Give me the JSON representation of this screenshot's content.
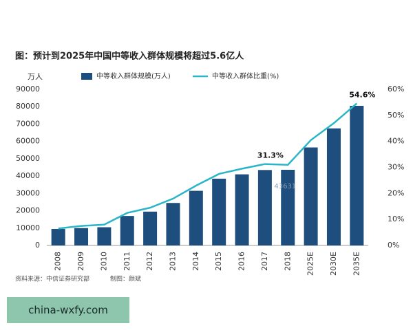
{
  "chart_data": {
    "type": "bar-line",
    "title": "图：预计到2025年中国中等收入群体规模将超过5.6亿人",
    "y_unit": "万人",
    "categories": [
      "2008",
      "2009",
      "2010",
      "2011",
      "2012",
      "2013",
      "2014",
      "2015",
      "2016",
      "2017",
      "2018",
      "2025E",
      "2030E",
      "2035E"
    ],
    "series": [
      {
        "name": "中等收入群体规模(万人)",
        "color": "#1d4e7e",
        "type": "bar",
        "values": [
          9500,
          10000,
          10500,
          17000,
          19500,
          24500,
          31500,
          38500,
          41000,
          43500,
          43631,
          56500,
          67500,
          80500
        ],
        "value_labels": [
          null,
          null,
          null,
          null,
          null,
          null,
          null,
          null,
          null,
          null,
          "43631",
          null,
          null,
          null
        ]
      },
      {
        "name": "中等收入群体比重(%)",
        "color": "#2ab5c8",
        "type": "line",
        "axis": "y2",
        "values": [
          6.5,
          7.5,
          8,
          12.5,
          14.5,
          18,
          23,
          27.5,
          29.5,
          31.3,
          31,
          40.5,
          47,
          54.6
        ],
        "value_labels": [
          null,
          null,
          null,
          null,
          null,
          null,
          null,
          null,
          null,
          "31.3%",
          null,
          null,
          null,
          "54.6%"
        ]
      }
    ],
    "ylim": [
      0,
      90000
    ],
    "yticks": [
      0,
      10000,
      20000,
      30000,
      40000,
      50000,
      60000,
      70000,
      80000,
      90000
    ],
    "y2lim": [
      0,
      60
    ],
    "y2ticks": [
      {
        "value": 0,
        "label": "0%"
      },
      {
        "value": 10,
        "label": "10%"
      },
      {
        "value": 20,
        "label": "20%"
      },
      {
        "value": 30,
        "label": "30%"
      },
      {
        "value": 40,
        "label": "40%"
      },
      {
        "value": 50,
        "label": "50%"
      },
      {
        "value": 60,
        "label": "60%"
      }
    ],
    "grid": false,
    "legend": "top",
    "source": "资料来源：中信证券研究部",
    "author": "制图：颜斌"
  },
  "watermark": "china-wxfy.com"
}
